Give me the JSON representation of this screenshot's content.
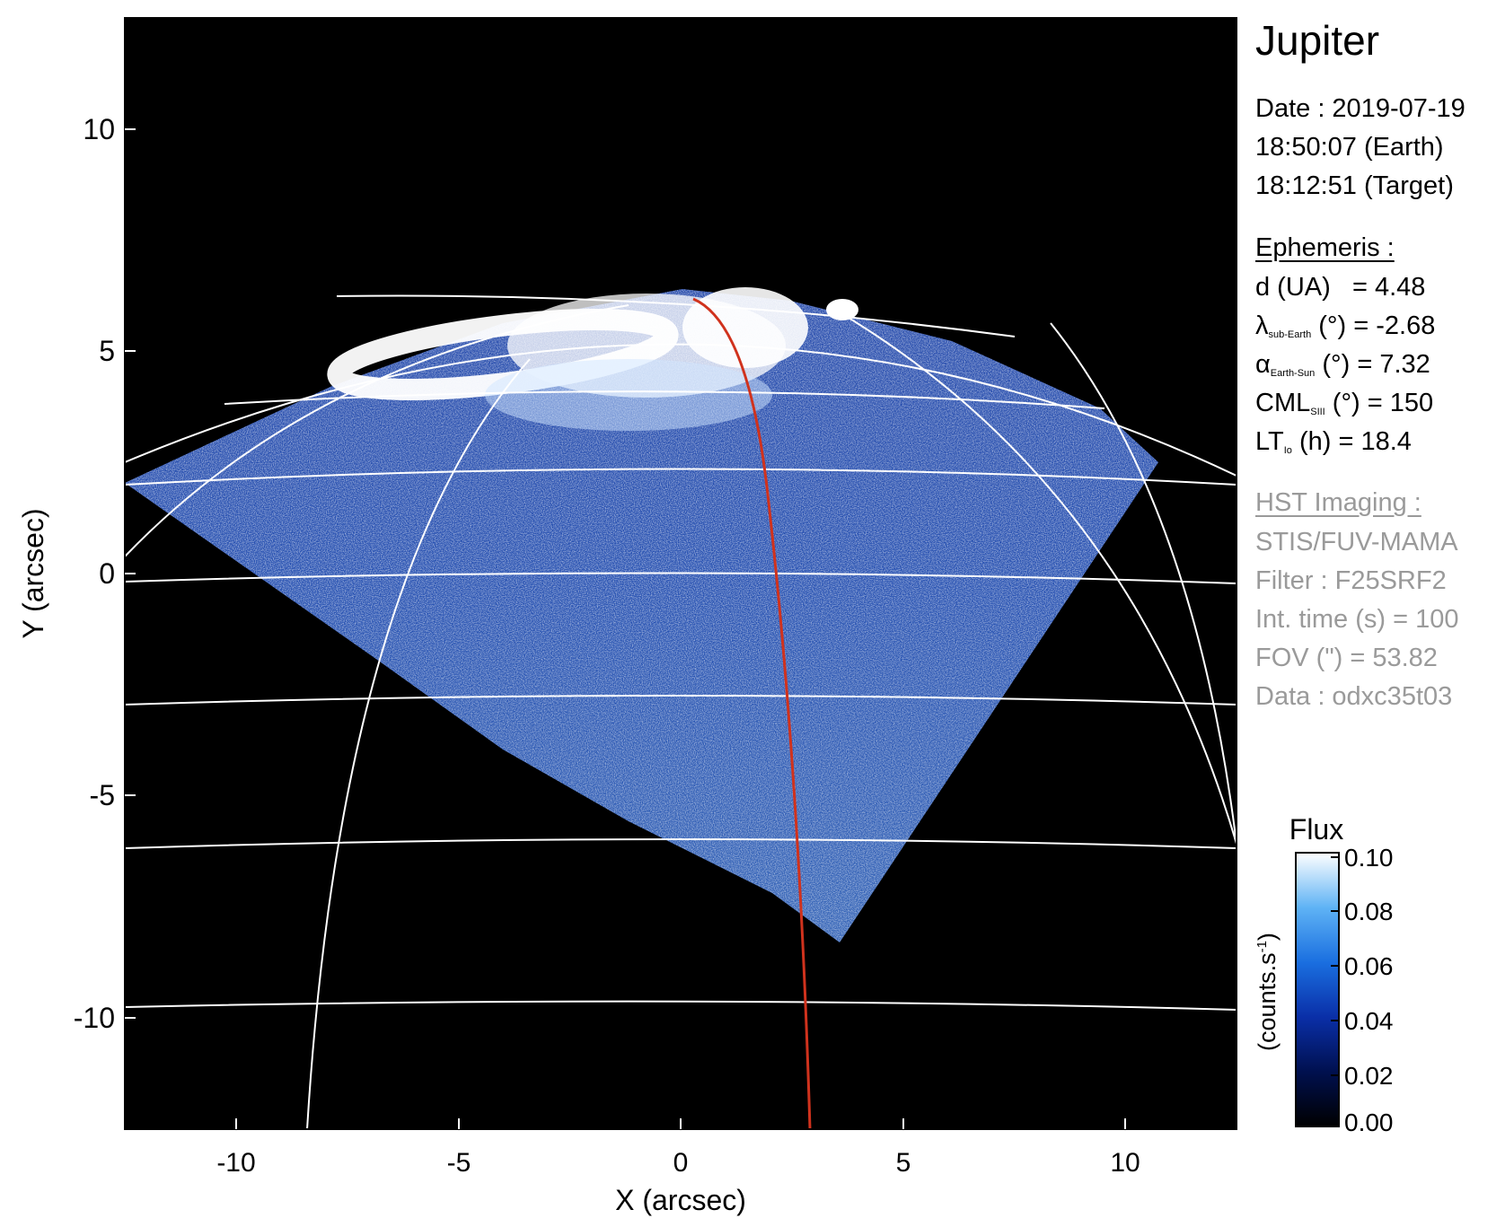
{
  "title": "Jupiter",
  "observation": {
    "date_line": "Date : 2019-07-19",
    "earth_time": "18:50:07 (Earth)",
    "target_time": "18:12:51 (Target)"
  },
  "ephemeris": {
    "heading": "Ephemeris :",
    "d": {
      "label": "d (UA)",
      "value": "= 4.48"
    },
    "lambda": {
      "symbol": "λ",
      "sub": "sub-Earth",
      "unit": " (°)",
      "value": " = -2.68"
    },
    "alpha": {
      "symbol": "α",
      "sub": "Earth-Sun",
      "unit": " (°)",
      "value": " = 7.32"
    },
    "cml": {
      "symbol": "CML",
      "sub": "SIII",
      "unit": " (°)",
      "value": " = 150"
    },
    "lt": {
      "symbol": "LT",
      "sub": "Io",
      "unit": " (h)",
      "value": " = 18.4"
    }
  },
  "hst": {
    "heading": "HST Imaging :",
    "instrument": "STIS/FUV-MAMA",
    "filter": "Filter : F25SRF2",
    "int_time": "Int. time (s) = 100",
    "fov": "FOV (\") = 53.82",
    "data": "Data : odxc35t03"
  },
  "axes": {
    "xlabel": "X (arcsec)",
    "ylabel": "Y (arcsec)",
    "xlim": [
      -12.5,
      12.5
    ],
    "ylim": [
      -12.5,
      12.5
    ],
    "xticks": [
      "-10",
      "-5",
      "0",
      "5",
      "10"
    ],
    "yticks": [
      "10",
      "5",
      "0",
      "-5",
      "-10"
    ]
  },
  "colorbar": {
    "title": "Flux",
    "unit_label": "(counts.s",
    "unit_sup": "-1",
    "unit_close": ")",
    "range": [
      0.0,
      0.1
    ],
    "ticks": [
      "0.10",
      "0.08",
      "0.06",
      "0.04",
      "0.02",
      "0.00"
    ]
  },
  "colors": {
    "background": "#000000",
    "emission_low": "#0a1f8a",
    "emission_high": "#ffffff",
    "grid": "#ffffff",
    "trace": "#d0321d"
  }
}
